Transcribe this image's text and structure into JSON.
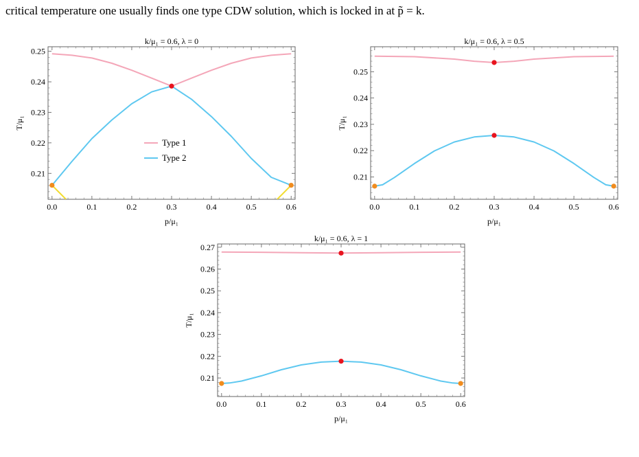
{
  "header": {
    "text": "critical temperature one usually finds one type CDW solution, which is locked in at p̃ = k."
  },
  "chart_data": [
    {
      "type": "line",
      "title": "k/μ₁ = 0.6, λ = 0",
      "xlabel": "p/μ₁",
      "ylabel": "T/μ₁",
      "xlim": [
        -0.01,
        0.61
      ],
      "ylim": [
        0.2015,
        0.2515
      ],
      "xticks": [
        0.0,
        0.1,
        0.2,
        0.3,
        0.4,
        0.5,
        0.6
      ],
      "xtick_labels": [
        "0.0",
        "0.1",
        "0.2",
        "0.3",
        "0.4",
        "0.5",
        "0.6"
      ],
      "yticks": [
        0.21,
        0.22,
        0.23,
        0.24,
        0.25
      ],
      "ytick_labels": [
        "0.21",
        "0.22",
        "0.23",
        "0.24",
        "0.25"
      ],
      "legend": {
        "position": "center-left",
        "entries": [
          "Type 1",
          "Type 2"
        ]
      },
      "colors": {
        "type1": "#f4a6b8",
        "type2": "#5ec8f0",
        "type3": "#f2dc2e",
        "red": "#e8141e",
        "orange": "#f08c1e"
      },
      "series": [
        {
          "name": "Type 1",
          "color": "#f4a6b8",
          "x": [
            0.0,
            0.05,
            0.1,
            0.15,
            0.2,
            0.25,
            0.3,
            0.35,
            0.4,
            0.45,
            0.5,
            0.55,
            0.6
          ],
          "y": [
            0.2492,
            0.2487,
            0.2478,
            0.2461,
            0.2438,
            0.2412,
            0.2386,
            0.2412,
            0.2438,
            0.2461,
            0.2478,
            0.2487,
            0.2492
          ]
        },
        {
          "name": "Type 2",
          "color": "#5ec8f0",
          "x": [
            0.0,
            0.05,
            0.1,
            0.15,
            0.2,
            0.25,
            0.3,
            0.35,
            0.4,
            0.45,
            0.5,
            0.55,
            0.6
          ],
          "y": [
            0.2061,
            0.2139,
            0.2214,
            0.2275,
            0.2328,
            0.2367,
            0.2386,
            0.2343,
            0.2286,
            0.2221,
            0.2149,
            0.2087,
            0.2061
          ]
        },
        {
          "color": "#f2dc2e",
          "x": [
            0.0,
            0.035
          ],
          "y": [
            0.2061,
            0.2015
          ]
        },
        {
          "color": "#f2dc2e",
          "x": [
            0.565,
            0.6
          ],
          "y": [
            0.2015,
            0.2061
          ]
        }
      ],
      "points": [
        {
          "x": 0.3,
          "y": 0.2386,
          "color": "#e8141e"
        },
        {
          "x": 0.0,
          "y": 0.2061,
          "color": "#f08c1e"
        },
        {
          "x": 0.6,
          "y": 0.2061,
          "color": "#f08c1e"
        }
      ]
    },
    {
      "type": "line",
      "title": "k/μ₁ = 0.6, λ = 0.5",
      "xlabel": "p/μ₁",
      "ylabel": "T/μ₁",
      "xlim": [
        -0.01,
        0.61
      ],
      "ylim": [
        0.2015,
        0.2595
      ],
      "xticks": [
        0.0,
        0.1,
        0.2,
        0.3,
        0.4,
        0.5,
        0.6
      ],
      "xtick_labels": [
        "0.0",
        "0.1",
        "0.2",
        "0.3",
        "0.4",
        "0.5",
        "0.6"
      ],
      "yticks": [
        0.21,
        0.22,
        0.23,
        0.24,
        0.25
      ],
      "ytick_labels": [
        "0.21",
        "0.22",
        "0.23",
        "0.24",
        "0.25"
      ],
      "colors": {
        "type1": "#f4a6b8",
        "type2": "#5ec8f0",
        "red": "#e8141e",
        "orange": "#f08c1e"
      },
      "series": [
        {
          "name": "Type 1",
          "color": "#f4a6b8",
          "x": [
            0.0,
            0.1,
            0.2,
            0.25,
            0.3,
            0.35,
            0.4,
            0.5,
            0.6
          ],
          "y": [
            0.2559,
            0.2557,
            0.2548,
            0.254,
            0.2535,
            0.254,
            0.2548,
            0.2557,
            0.2559
          ]
        },
        {
          "name": "Type 2",
          "color": "#5ec8f0",
          "x": [
            0.0,
            0.02,
            0.05,
            0.1,
            0.15,
            0.2,
            0.25,
            0.3,
            0.35,
            0.4,
            0.45,
            0.5,
            0.55,
            0.58,
            0.6
          ],
          "y": [
            0.2065,
            0.207,
            0.2098,
            0.2151,
            0.2199,
            0.2233,
            0.2252,
            0.2258,
            0.2252,
            0.2233,
            0.2199,
            0.2151,
            0.2098,
            0.207,
            0.2065
          ]
        }
      ],
      "points": [
        {
          "x": 0.3,
          "y": 0.2535,
          "color": "#e8141e"
        },
        {
          "x": 0.3,
          "y": 0.2258,
          "color": "#e8141e"
        },
        {
          "x": 0.0,
          "y": 0.2065,
          "color": "#f08c1e"
        },
        {
          "x": 0.6,
          "y": 0.2065,
          "color": "#f08c1e"
        }
      ]
    },
    {
      "type": "line",
      "title": "k/μ₁ = 0.6, λ = 1",
      "xlabel": "p/μ₁",
      "ylabel": "T/μ₁",
      "xlim": [
        -0.01,
        0.61
      ],
      "ylim": [
        0.2015,
        0.2715
      ],
      "xticks": [
        0.0,
        0.1,
        0.2,
        0.3,
        0.4,
        0.5,
        0.6
      ],
      "xtick_labels": [
        "0.0",
        "0.1",
        "0.2",
        "0.3",
        "0.4",
        "0.5",
        "0.6"
      ],
      "yticks": [
        0.21,
        0.22,
        0.23,
        0.24,
        0.25,
        0.26,
        0.27
      ],
      "ytick_labels": [
        "0.21",
        "0.22",
        "0.23",
        "0.24",
        "0.25",
        "0.26",
        "0.27"
      ],
      "colors": {
        "type1": "#f4a6b8",
        "type2": "#5ec8f0",
        "red": "#e8141e",
        "orange": "#f08c1e"
      },
      "series": [
        {
          "name": "Type 1",
          "color": "#f4a6b8",
          "x": [
            0.0,
            0.1,
            0.2,
            0.25,
            0.3,
            0.35,
            0.4,
            0.5,
            0.6
          ],
          "y": [
            0.2678,
            0.2677,
            0.2675,
            0.2674,
            0.2673,
            0.2674,
            0.2675,
            0.2677,
            0.2678
          ]
        },
        {
          "name": "Type 2",
          "color": "#5ec8f0",
          "x": [
            0.0,
            0.02,
            0.05,
            0.1,
            0.15,
            0.2,
            0.25,
            0.3,
            0.35,
            0.4,
            0.45,
            0.5,
            0.55,
            0.58,
            0.6
          ],
          "y": [
            0.2075,
            0.2077,
            0.2086,
            0.211,
            0.2138,
            0.216,
            0.2173,
            0.2177,
            0.2173,
            0.216,
            0.2138,
            0.211,
            0.2086,
            0.2077,
            0.2075
          ]
        }
      ],
      "points": [
        {
          "x": 0.3,
          "y": 0.2673,
          "color": "#e8141e"
        },
        {
          "x": 0.3,
          "y": 0.2177,
          "color": "#e8141e"
        },
        {
          "x": 0.0,
          "y": 0.2075,
          "color": "#f08c1e"
        },
        {
          "x": 0.6,
          "y": 0.2075,
          "color": "#f08c1e"
        }
      ]
    }
  ]
}
